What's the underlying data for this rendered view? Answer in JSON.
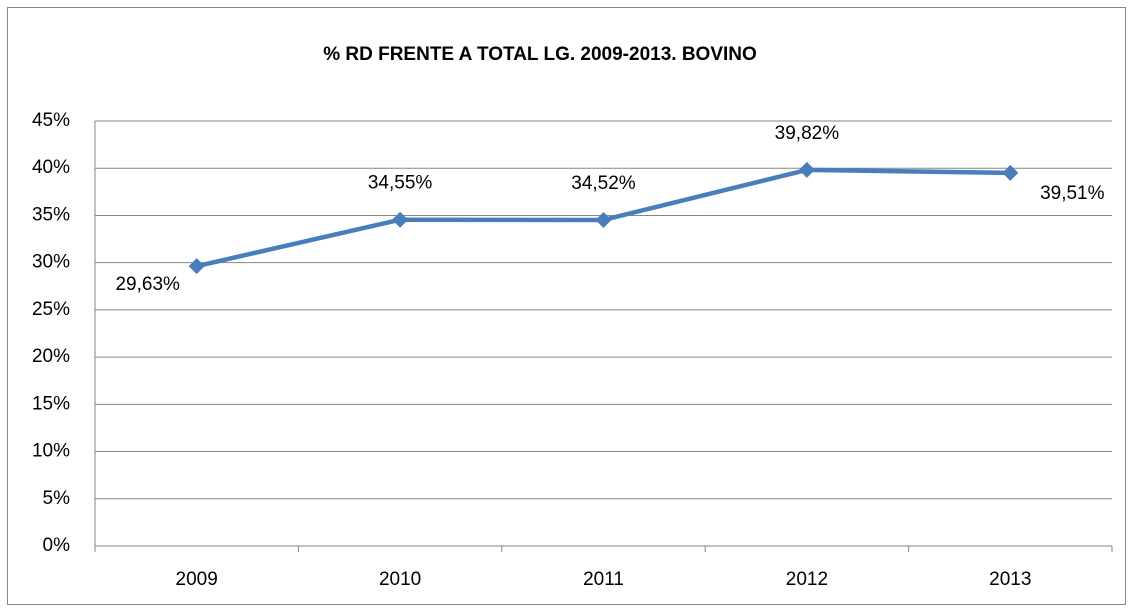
{
  "chart_data": {
    "type": "line",
    "title": "% RD FRENTE A TOTAL LG. 2009-2013. BOVINO",
    "categories": [
      "2009",
      "2010",
      "2011",
      "2012",
      "2013"
    ],
    "series": [
      {
        "color": "#4a7ebb",
        "values": [
          29.63,
          34.55,
          34.52,
          39.82,
          39.51
        ],
        "value_labels": [
          "29,63%",
          "34,55%",
          "34,52%",
          "39,82%",
          "39,51%"
        ]
      }
    ],
    "ylim": [
      0,
      45
    ],
    "yticks": [
      {
        "value": 0,
        "label": "0%"
      },
      {
        "value": 5,
        "label": "5%"
      },
      {
        "value": 10,
        "label": "10%"
      },
      {
        "value": 15,
        "label": "15%"
      },
      {
        "value": 20,
        "label": "20%"
      },
      {
        "value": 25,
        "label": "25%"
      },
      {
        "value": 30,
        "label": "30%"
      },
      {
        "value": 35,
        "label": "35%"
      },
      {
        "value": 40,
        "label": "40%"
      },
      {
        "value": 45,
        "label": "45%"
      }
    ],
    "grid": true
  }
}
